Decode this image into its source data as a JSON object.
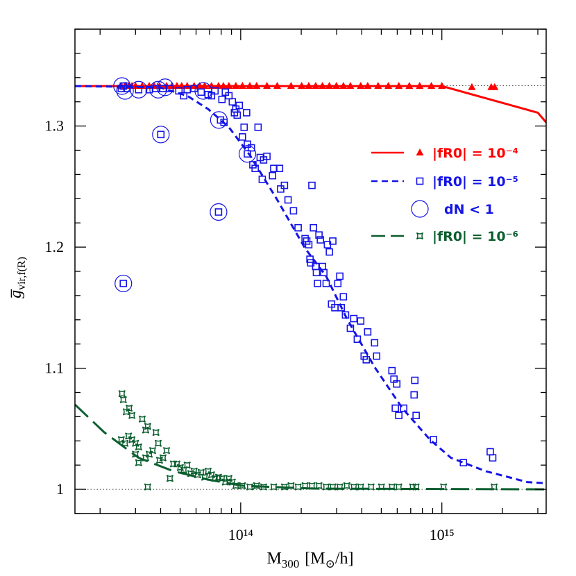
{
  "chart_data": {
    "type": "scatter",
    "xlog": true,
    "xlim": [
      15000000000000.0,
      3300000000000000.0
    ],
    "ylim": [
      0.98,
      1.38
    ],
    "xticks": [
      {
        "value": 100000000000000.0,
        "label": "10¹⁴"
      },
      {
        "value": 1000000000000000.0,
        "label": "10¹⁵"
      }
    ],
    "yticks": [
      1,
      1.1,
      1.2,
      1.3
    ],
    "xminorticks": [
      20000000000000.0,
      30000000000000.0,
      40000000000000.0,
      50000000000000.0,
      60000000000000.0,
      70000000000000.0,
      80000000000000.0,
      90000000000000.0,
      200000000000000.0,
      300000000000000.0,
      400000000000000.0,
      500000000000000.0,
      600000000000000.0,
      700000000000000.0,
      800000000000000.0,
      900000000000000.0,
      2000000000000000.0,
      3000000000000000.0
    ],
    "yminorticks": [
      0.98,
      1.02,
      1.04,
      1.06,
      1.08,
      1.12,
      1.14,
      1.16,
      1.18,
      1.22,
      1.24,
      1.26,
      1.28,
      1.32,
      1.34,
      1.36,
      1.38
    ],
    "reference_lines": [
      1,
      1.3333
    ],
    "xlabel": {
      "main": "M",
      "sub": "300",
      "unit": "[M",
      "unit_sub": "⊙",
      "unit_end": "/h]"
    },
    "ylabel": {
      "symbol": "g̅",
      "subscript": "vir,f(R)"
    },
    "series": [
      {
        "name": "|fR0| = 10⁻⁴",
        "color": "#ff0000",
        "marker": "triangle",
        "dash": "solid",
        "x": [
          25500000000000.0,
          26600000000000.0,
          27700000000000.0,
          28800000000000.0,
          30000000000000.0,
          32400000000000.0,
          35100000000000.0,
          37100000000000.0,
          39500000000000.0,
          42800000000000.0,
          45500000000000.0,
          48200000000000.0,
          50900000000000.0,
          54200000000000.0,
          58700000000000.0,
          62600000000000.0,
          66200000000000.0,
          71600000000000.0,
          77600000000000.0,
          82000000000000.0,
          87400000000000.0,
          94600000000000.0,
          102000000000000.0,
          111000000000000.0,
          120000000000000.0,
          135000000000000.0,
          152000000000000.0,
          178000000000000.0,
          201000000000000.0,
          218000000000000.0,
          236000000000000.0,
          255000000000000.0,
          276000000000000.0,
          299000000000000.0,
          324000000000000.0,
          351000000000000.0,
          395000000000000.0,
          428000000000000.0,
          482000000000000.0,
          542000000000000.0,
          611000000000000.0,
          689000000000000.0,
          776000000000000.0,
          887000000000000.0,
          1000000000000000.0,
          1410000000000000.0,
          1760000000000000.0,
          1830000000000000.0
        ],
        "y": [
          1.333,
          1.333,
          1.333,
          1.333,
          1.333,
          1.333,
          1.333,
          1.333,
          1.333,
          1.333,
          1.333,
          1.333,
          1.333,
          1.333,
          1.333,
          1.333,
          1.333,
          1.333,
          1.333,
          1.333,
          1.333,
          1.333,
          1.333,
          1.333,
          1.333,
          1.333,
          1.333,
          1.333,
          1.333,
          1.333,
          1.333,
          1.333,
          1.333,
          1.333,
          1.333,
          1.333,
          1.333,
          1.333,
          1.333,
          1.333,
          1.333,
          1.333,
          1.333,
          1.333,
          1.333,
          1.332,
          1.332,
          1.332
        ],
        "model": {
          "x": [
            15000000000000.0,
            1000000000000000.0,
            3000000000000000.0,
            3300000000000000.0
          ],
          "y": [
            1.333,
            1.333,
            1.311,
            1.303
          ]
        }
      },
      {
        "name": "|fR0| = 10⁻⁵",
        "color": "#1414e6",
        "marker": "square",
        "dash": "short",
        "x": [
          25500000000000.0,
          26100000000000.0,
          27200000000000.0,
          31100000000000.0,
          35100000000000.0,
          37900000000000.0,
          41100000000000.0,
          44500000000000.0,
          49300000000000.0,
          52100000000000.0,
          54200000000000.0,
          58700000000000.0,
          63600000000000.0,
          68900000000000.0,
          71600000000000.0,
          74500000000000.0,
          79400000000000.0,
          80700000000000.0,
          82600000000000.0,
          83900000000000.0,
          87400000000000.0,
          90900000000000.0,
          93100000000000.0,
          94600000000000.0,
          96100000000000.0,
          98400000000000.0,
          102000000000000.0,
          104000000000000.0,
          107000000000000.0,
          108000000000000.0,
          113000000000000.0,
          115000000000000.0,
          118000000000000.0,
          122000000000000.0,
          125000000000000.0,
          128000000000000.0,
          130000000000000.0,
          135000000000000.0,
          144000000000000.0,
          146000000000000.0,
          156000000000000.0,
          158000000000000.0,
          165000000000000.0,
          172000000000000.0,
          183000000000000.0,
          193000000000000.0,
          209000000000000.0,
          213000000000000.0,
          218000000000000.0,
          221000000000000.0,
          223000000000000.0,
          226000000000000.0,
          230000000000000.0,
          236000000000000.0,
          238000000000000.0,
          241000000000000.0,
          245000000000000.0,
          249000000000000.0,
          255000000000000.0,
          259000000000000.0,
          266000000000000.0,
          270000000000000.0,
          276000000000000.0,
          283000000000000.0,
          287000000000000.0,
          294000000000000.0,
          304000000000000.0,
          311000000000000.0,
          316000000000000.0,
          324000000000000.0,
          332000000000000.0,
          351000000000000.0,
          365000000000000.0,
          380000000000000.0,
          395000000000000.0,
          411000000000000.0,
          421000000000000.0,
          428000000000000.0,
          463000000000000.0,
          474000000000000.0,
          565000000000000.0,
          578000000000000.0,
          587000000000000.0,
          597000000000000.0,
          611000000000000.0,
          646000000000000.0,
          728000000000000.0,
          734000000000000.0,
          745000000000000.0,
          909000000000000.0,
          1280000000000000.0,
          1740000000000000.0,
          1790000000000000.0,
          40100000000000.0,
          77600000000000.0,
          26100000000000.0,
          108000000000000.0
        ],
        "y": [
          1.331,
          1.333,
          1.331,
          1.33,
          1.33,
          1.331,
          1.331,
          1.331,
          1.329,
          1.325,
          1.33,
          1.331,
          1.328,
          1.326,
          1.325,
          1.329,
          1.305,
          1.322,
          1.303,
          1.328,
          1.325,
          1.32,
          1.311,
          1.314,
          1.309,
          1.317,
          1.291,
          1.299,
          1.311,
          1.285,
          1.282,
          1.268,
          1.265,
          1.299,
          1.274,
          1.256,
          1.272,
          1.275,
          1.259,
          1.265,
          1.265,
          1.248,
          1.251,
          1.239,
          1.23,
          1.216,
          1.207,
          1.205,
          1.202,
          1.19,
          1.187,
          1.251,
          1.216,
          1.184,
          1.179,
          1.17,
          1.21,
          1.206,
          1.184,
          1.179,
          1.17,
          1.202,
          1.196,
          1.153,
          1.205,
          1.15,
          1.17,
          1.176,
          1.15,
          1.159,
          1.144,
          1.133,
          1.141,
          1.124,
          1.139,
          1.11,
          1.107,
          1.13,
          1.121,
          1.11,
          1.098,
          1.091,
          1.067,
          1.087,
          1.061,
          1.067,
          1.078,
          1.09,
          1.061,
          1.041,
          1.022,
          1.031,
          1.026,
          1.293,
          1.229,
          1.17,
          1.277
        ],
        "model": {
          "x": [
            15000000000000.0,
            39500000000000.0,
            54200000000000.0,
            68900000000000.0,
            87400000000000.0,
            111000000000000.0,
            152000000000000.0,
            209000000000000.0,
            266000000000000.0,
            337000000000000.0,
            463000000000000.0,
            636000000000000.0,
            873000000000000.0,
            1110000000000000.0,
            1650000000000000.0,
            2660000000000000.0,
            3300000000000000.0
          ],
          "y": [
            1.333,
            1.332,
            1.325,
            1.314,
            1.299,
            1.276,
            1.239,
            1.199,
            1.176,
            1.141,
            1.101,
            1.067,
            1.041,
            1.026,
            1.015,
            1.006,
            1.005
          ]
        }
      },
      {
        "name": "dN < 1",
        "color": "#1414e6",
        "marker": "circle",
        "x": [
          25700000000000.0,
          26600000000000.0,
          31100000000000.0,
          38900000000000.0,
          42100000000000.0,
          65200000000000.0,
          77900000000000.0,
          108000000000000.0,
          40100000000000.0,
          77600000000000.0,
          26100000000000.0
        ],
        "y": [
          1.333,
          1.329,
          1.33,
          1.33,
          1.332,
          1.329,
          1.305,
          1.277,
          1.293,
          1.229,
          1.17
        ]
      },
      {
        "name": "|fR0| = 10⁻⁶",
        "color": "#0b5e2e",
        "marker": "star",
        "dash": "long",
        "x": [
          25700000000000.0,
          26100000000000.0,
          27000000000000.0,
          27900000000000.0,
          28800000000000.0,
          25500000000000.0,
          26600000000000.0,
          27700000000000.0,
          28800000000000.0,
          30000000000000.0,
          31100000000000.0,
          32400000000000.0,
          33700000000000.0,
          34500000000000.0,
          36500000000000.0,
          37900000000000.0,
          38900000000000.0,
          39500000000000.0,
          41100000000000.0,
          42800000000000.0,
          44500000000000.0,
          31100000000000.0,
          30000000000000.0,
          33700000000000.0,
          35100000000000.0,
          46300000000000.0,
          48200000000000.0,
          50100000000000.0,
          52100000000000.0,
          54200000000000.0,
          56500000000000.0,
          58700000000000.0,
          61100000000000.0,
          63600000000000.0,
          66200000000000.0,
          68900000000000.0,
          71600000000000.0,
          74500000000000.0,
          77600000000000.0,
          80700000000000.0,
          83900000000000.0,
          87400000000000.0,
          90900000000000.0,
          94600000000000.0,
          102000000000000.0,
          111000000000000.0,
          120000000000000.0,
          130000000000000.0,
          146000000000000.0,
          165000000000000.0,
          178000000000000.0,
          193000000000000.0,
          209000000000000.0,
          226000000000000.0,
          245000000000000.0,
          266000000000000.0,
          287000000000000.0,
          311000000000000.0,
          337000000000000.0,
          365000000000000.0,
          395000000000000.0,
          445000000000000.0,
          501000000000000.0,
          565000000000000.0,
          611000000000000.0,
          716000000000000.0,
          745000000000000.0,
          1020000000000000.0,
          1820000000000000.0,
          34500000000000.0
        ],
        "y": [
          1.079,
          1.074,
          1.064,
          1.067,
          1.061,
          1.041,
          1.038,
          1.044,
          1.041,
          1.038,
          1.035,
          1.058,
          1.049,
          1.052,
          1.032,
          1.047,
          1.038,
          1.024,
          1.026,
          1.032,
          1.009,
          1.022,
          1.029,
          1.026,
          1.029,
          1.021,
          1.021,
          1.018,
          1.016,
          1.02,
          1.013,
          1.015,
          1.012,
          1.014,
          1.01,
          1.015,
          1.012,
          1.009,
          1.01,
          1.009,
          1.006,
          1.009,
          1.006,
          1.003,
          1.003,
          1.002,
          1.003,
          1.002,
          1.002,
          1.002,
          1.003,
          1.002,
          1.003,
          1.003,
          1.003,
          1.002,
          1.002,
          1.002,
          1.003,
          1.002,
          1.002,
          1.002,
          1.002,
          1.002,
          1.002,
          1.002,
          1.002,
          1.002,
          1.002,
          1.002
        ],
        "model": {
          "x": [
            15000000000000.0,
            21000000000000.0,
            31100000000000.0,
            46300000000000.0,
            68900000000000.0,
            102000000000000.0,
            226000000000000.0,
            3300000000000000.0
          ],
          "y": [
            1.07,
            1.047,
            1.026,
            1.015,
            1.008,
            1.003,
            1.0006,
            1.0
          ]
        }
      }
    ]
  }
}
